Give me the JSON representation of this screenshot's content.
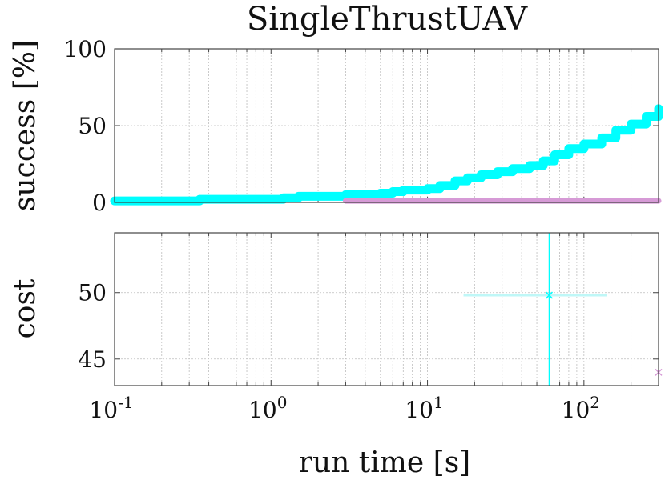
{
  "chart_data": [
    {
      "type": "line",
      "title": "SingleThrustUAV",
      "ylabel": "success [%]",
      "xscale": "log",
      "xlim": [
        0.1,
        300
      ],
      "ylim": [
        0,
        100
      ],
      "yticks": [
        "0",
        "50",
        "100"
      ],
      "grid": true,
      "series": [
        {
          "color": "#00ffff",
          "x": [
            0.1,
            0.3,
            0.35,
            0.9,
            1.0,
            1.2,
            1.5,
            2.5,
            3.0,
            4.0,
            5.0,
            6.0,
            7.0,
            9.0,
            10.0,
            12.0,
            15.0,
            18.0,
            22.0,
            28.0,
            35.0,
            45.0,
            55.0,
            65.0,
            80.0,
            100.0,
            130.0,
            160.0,
            200.0,
            250.0,
            300.0
          ],
          "y": [
            1,
            1,
            2,
            2,
            2,
            3,
            4,
            4,
            5,
            5,
            6,
            7,
            8,
            8,
            9,
            11,
            14,
            16,
            18,
            20,
            22,
            24,
            27,
            31,
            35,
            38,
            42,
            47,
            51,
            56,
            61
          ]
        },
        {
          "color": "#d69ad6",
          "x": [
            3.0,
            300.0
          ],
          "y": [
            1,
            1
          ]
        }
      ]
    },
    {
      "type": "scatter",
      "ylabel": "cost",
      "xlabel": "run time [s]",
      "xscale": "log",
      "xlim": [
        0.1,
        300
      ],
      "ylim": [
        43,
        54.5
      ],
      "yticks": [
        "45",
        "50"
      ],
      "xticks": [
        {
          "base": "10",
          "exp": "-1"
        },
        {
          "base": "10",
          "exp": "0"
        },
        {
          "base": "10",
          "exp": "1"
        },
        {
          "base": "10",
          "exp": "2"
        }
      ],
      "grid": true,
      "series": [
        {
          "color": "#00ffff",
          "marker": "x",
          "points": [
            {
              "x": 60,
              "y": 49.8,
              "x_err": [
                17,
                140
              ]
            }
          ],
          "vline_x": 60
        },
        {
          "color": "#d69ad6",
          "marker": "x",
          "points": [
            {
              "x": 300,
              "y": 44
            }
          ]
        }
      ]
    }
  ]
}
